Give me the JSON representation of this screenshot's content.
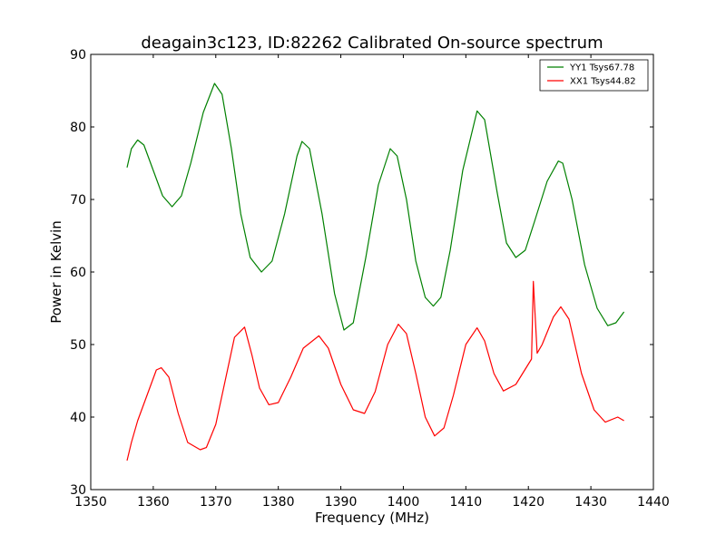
{
  "chart_data": {
    "type": "line",
    "title": "deagain3c123, ID:82262 Calibrated On-source spectrum",
    "xlabel": "Frequency (MHz)",
    "ylabel": "Power in Kelvin",
    "xlim": [
      1350,
      1440
    ],
    "ylim": [
      30,
      90
    ],
    "xticks": [
      "1350",
      "1360",
      "1370",
      "1380",
      "1390",
      "1400",
      "1410",
      "1420",
      "1430",
      "1440"
    ],
    "yticks": [
      "30",
      "40",
      "50",
      "60",
      "70",
      "80",
      "90"
    ],
    "grid": false,
    "legend_position": "top-right",
    "series": [
      {
        "name": "YY1 Tsys67.78",
        "color": "#008000",
        "x": [
          1355.8,
          1356.5,
          1357.5,
          1358.5,
          1360,
          1361.5,
          1363,
          1364.5,
          1366,
          1368,
          1369.8,
          1371,
          1372.5,
          1374,
          1375.5,
          1377.3,
          1379,
          1381,
          1383,
          1383.8,
          1385,
          1387,
          1389,
          1390.5,
          1392,
          1394,
          1396,
          1397.9,
          1399,
          1400.5,
          1402,
          1403.5,
          1404.8,
          1406,
          1407.5,
          1409.5,
          1411.8,
          1413,
          1415,
          1416.5,
          1418,
          1419.5,
          1421,
          1423,
          1424.8,
          1425.5,
          1427,
          1429,
          1431,
          1432.7,
          1434,
          1435.3
        ],
        "values": [
          74.4,
          77,
          78.2,
          77.5,
          74,
          70.5,
          69,
          70.5,
          75,
          82,
          86,
          84.5,
          77,
          68,
          62,
          60,
          61.5,
          68,
          76,
          78,
          77,
          68,
          57,
          52,
          53,
          62,
          72,
          77,
          76,
          70,
          61.5,
          56.5,
          55.3,
          56.5,
          63,
          74,
          82.2,
          81,
          71,
          64,
          62,
          63,
          67,
          72.5,
          75.3,
          75,
          70,
          61,
          55,
          52.6,
          53,
          54.5
        ]
      },
      {
        "name": "XX1 Tsys44.82",
        "color": "#ff0000",
        "x": [
          1355.8,
          1356.5,
          1357.5,
          1359,
          1360.5,
          1361.3,
          1362.5,
          1364,
          1365.5,
          1367.5,
          1368.5,
          1370,
          1371.5,
          1373,
          1374.6,
          1375.8,
          1377,
          1378.5,
          1380,
          1382,
          1384,
          1386.5,
          1388,
          1390,
          1392,
          1393.8,
          1395.5,
          1397.5,
          1399.2,
          1400.5,
          1402,
          1403.5,
          1405,
          1406.5,
          1408,
          1410,
          1411.8,
          1413,
          1414.5,
          1416,
          1418,
          1420.5,
          1420.8,
          1421.4,
          1422.2,
          1424,
          1425.2,
          1426.5,
          1428.5,
          1430.5,
          1432.3,
          1434.3,
          1435.3
        ],
        "values": [
          34,
          36.5,
          39.5,
          43,
          46.5,
          46.8,
          45.5,
          40.5,
          36.5,
          35.5,
          35.8,
          39,
          45,
          51,
          52.4,
          48.5,
          44,
          41.7,
          42,
          45.5,
          49.5,
          51.2,
          49.5,
          44.5,
          41,
          40.5,
          43.5,
          50,
          52.8,
          51.5,
          46,
          40,
          37.4,
          38.5,
          43,
          50,
          52.3,
          50.5,
          46,
          43.6,
          44.5,
          48,
          58.7,
          48.8,
          50,
          53.8,
          55.2,
          53.5,
          46,
          41,
          39.3,
          40,
          39.5
        ]
      }
    ]
  }
}
